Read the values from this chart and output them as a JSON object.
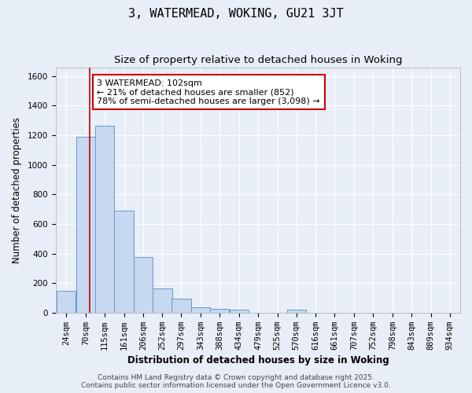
{
  "title1": "3, WATERMEAD, WOKING, GU21 3JT",
  "title2": "Size of property relative to detached houses in Woking",
  "xlabel": "Distribution of detached houses by size in Woking",
  "ylabel": "Number of detached properties",
  "bins": [
    24,
    70,
    115,
    161,
    206,
    252,
    297,
    343,
    388,
    434,
    479,
    525,
    570,
    616,
    661,
    707,
    752,
    798,
    843,
    889,
    934
  ],
  "bar_heights": [
    150,
    1190,
    1265,
    690,
    375,
    165,
    95,
    35,
    25,
    20,
    0,
    0,
    20,
    0,
    0,
    0,
    0,
    0,
    0,
    0,
    0
  ],
  "bar_color": "#c6d9f0",
  "bar_edge_color": "#6699cc",
  "background_color": "#e8eef8",
  "grid_color": "#ffffff",
  "red_line_x": 102,
  "annotation_line1": "3 WATERMEAD: 102sqm",
  "annotation_line2": "← 21% of detached houses are smaller (852)",
  "annotation_line3": "78% of semi-detached houses are larger (3,098) →",
  "annotation_box_color": "#ffffff",
  "annotation_box_edge": "#cc0000",
  "footer1": "Contains HM Land Registry data © Crown copyright and database right 2025.",
  "footer2": "Contains public sector information licensed under the Open Government Licence v3.0.",
  "ylim": [
    0,
    1660
  ],
  "yticks": [
    0,
    200,
    400,
    600,
    800,
    1000,
    1200,
    1400,
    1600
  ],
  "title1_fontsize": 11,
  "title2_fontsize": 9.5,
  "xlabel_fontsize": 8.5,
  "ylabel_fontsize": 8.5,
  "tick_fontsize": 7.5,
  "annot_fontsize": 8,
  "footer_fontsize": 6.5
}
